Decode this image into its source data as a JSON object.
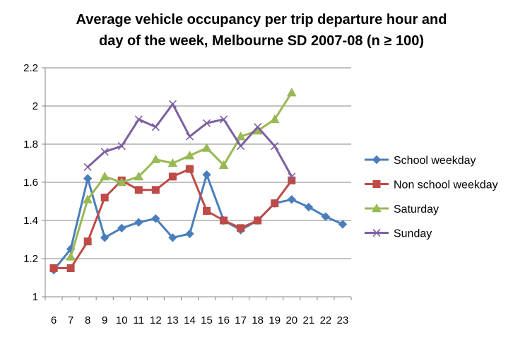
{
  "chart_data": {
    "type": "line",
    "title_lines": [
      "Average vehicle occupancy per trip departure hour and",
      "day of the week, Melbourne SD 2007-08  (n ≥ 100)"
    ],
    "xlabel": "",
    "ylabel": "",
    "x": [
      6,
      7,
      8,
      9,
      10,
      11,
      12,
      13,
      14,
      15,
      16,
      17,
      18,
      19,
      20,
      21,
      22,
      23
    ],
    "x_tick_labels": [
      "6",
      "7",
      "8",
      "9",
      "10",
      "11",
      "12",
      "13",
      "14",
      "15",
      "16",
      "17",
      "18",
      "19",
      "20",
      "21",
      "22",
      "23"
    ],
    "ylim": [
      1,
      2.2
    ],
    "y_ticks": [
      1,
      1.2,
      1.4,
      1.6,
      1.8,
      2,
      2.2
    ],
    "y_tick_labels": [
      "1",
      "1.2",
      "1.4",
      "1.6",
      "1.8",
      "2",
      "2.2"
    ],
    "grid": "horizontal",
    "legend_position": "right",
    "series": [
      {
        "name": "School weekday",
        "color": "#4a7ebb",
        "marker": "diamond",
        "x": [
          6,
          7,
          8,
          9,
          10,
          11,
          12,
          13,
          14,
          15,
          16,
          17,
          18,
          19,
          20,
          21,
          22,
          23
        ],
        "values": [
          1.14,
          1.25,
          1.62,
          1.31,
          1.36,
          1.39,
          1.41,
          1.31,
          1.33,
          1.64,
          1.4,
          1.35,
          1.4,
          1.49,
          1.51,
          1.47,
          1.42,
          1.38
        ]
      },
      {
        "name": "Non school weekday",
        "color": "#be4b48",
        "marker": "square",
        "x": [
          6,
          7,
          8,
          9,
          10,
          11,
          12,
          13,
          14,
          15,
          16,
          17,
          18,
          19,
          20
        ],
        "values": [
          1.15,
          1.15,
          1.29,
          1.52,
          1.61,
          1.56,
          1.56,
          1.63,
          1.67,
          1.45,
          1.4,
          1.36,
          1.4,
          1.49,
          1.61
        ]
      },
      {
        "name": "Saturday",
        "color": "#98b954",
        "marker": "triangle",
        "x": [
          7,
          8,
          9,
          10,
          11,
          12,
          13,
          14,
          15,
          16,
          17,
          18,
          19,
          20
        ],
        "values": [
          1.21,
          1.51,
          1.63,
          1.6,
          1.63,
          1.72,
          1.7,
          1.74,
          1.78,
          1.69,
          1.84,
          1.87,
          1.93,
          2.07
        ]
      },
      {
        "name": "Sunday",
        "color": "#7d60a0",
        "marker": "x",
        "x": [
          8,
          9,
          10,
          11,
          12,
          13,
          14,
          15,
          16,
          17,
          18,
          19,
          20
        ],
        "values": [
          1.68,
          1.76,
          1.79,
          1.93,
          1.89,
          2.01,
          1.84,
          1.91,
          1.93,
          1.79,
          1.89,
          1.79,
          1.63
        ]
      }
    ]
  }
}
